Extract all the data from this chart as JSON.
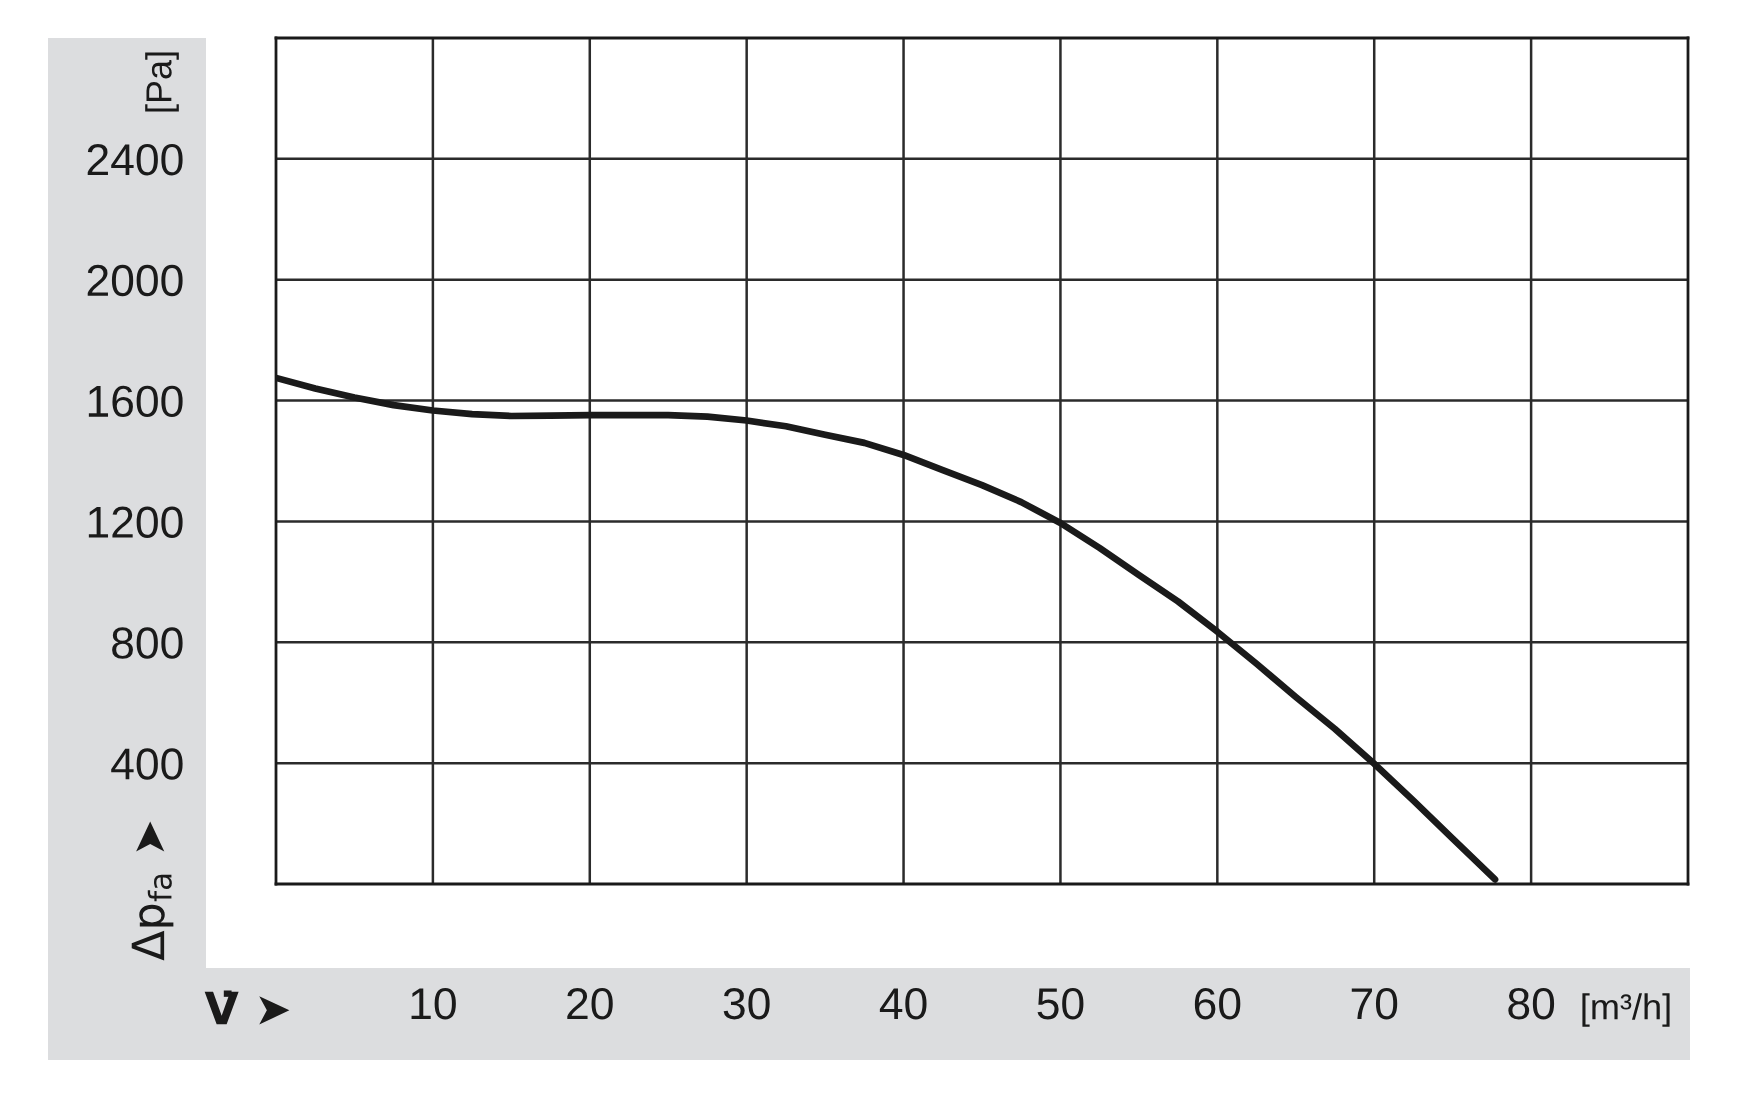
{
  "chart_data": {
    "type": "line",
    "xlabel": "V̇ ➤",
    "ylabel": "Δp$_{fa}$ ➤",
    "annotations": [
      "[Pa]",
      "[m³/h]"
    ],
    "x": [
      0,
      2.5,
      5,
      7.5,
      10,
      12.5,
      15,
      17.5,
      20,
      22.5,
      25,
      27.5,
      30,
      32.5,
      35,
      37.5,
      40,
      42.5,
      45,
      47.5,
      50,
      52.5,
      55,
      57.5,
      60,
      62.5,
      65,
      67.5,
      70,
      72.5,
      75,
      77.7
    ],
    "series": [
      {
        "color": "#1a1a1a",
        "values": [
          1675,
          1640,
          1610,
          1585,
          1567,
          1555,
          1549,
          1550,
          1552,
          1552,
          1552,
          1547,
          1534,
          1515,
          1487,
          1460,
          1420,
          1370,
          1320,
          1264,
          1195,
          1112,
          1023,
          935,
          835,
          729,
          619,
          513,
          398,
          276,
          150,
          15
        ]
      }
    ],
    "xlim": [
      0,
      90
    ],
    "xticks": [
      10,
      20,
      30,
      40,
      50,
      60,
      70,
      80
    ],
    "ylim": [
      0,
      2800
    ],
    "yticks": [
      400,
      800,
      1200,
      1600,
      2000,
      2400
    ],
    "grid": true,
    "line_style": "solid"
  }
}
